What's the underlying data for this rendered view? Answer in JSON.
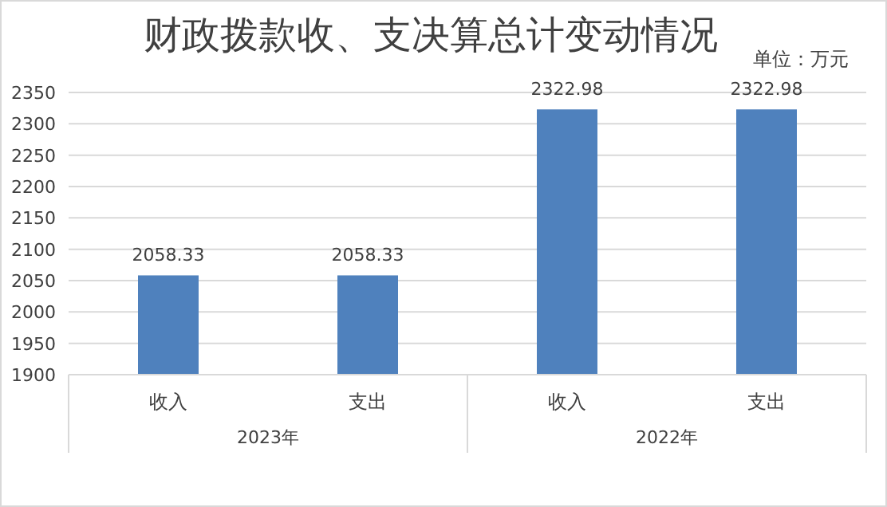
{
  "chart_data": {
    "type": "bar",
    "title": "财政拨款收、支决算总计变动情况",
    "subtitle": "单位：万元",
    "categories": [
      "收入",
      "支出",
      "收入",
      "支出"
    ],
    "values": [
      2058.33,
      2058.33,
      2322.98,
      2322.98
    ],
    "color": "#4f81bd",
    "ylim": [
      1900,
      2350
    ],
    "yticks": [
      1900,
      1950,
      2000,
      2050,
      2100,
      2150,
      2200,
      2250,
      2300,
      2350
    ],
    "grid": "y",
    "data_labels": true,
    "annotations": [
      "2023年",
      "2022年"
    ]
  }
}
